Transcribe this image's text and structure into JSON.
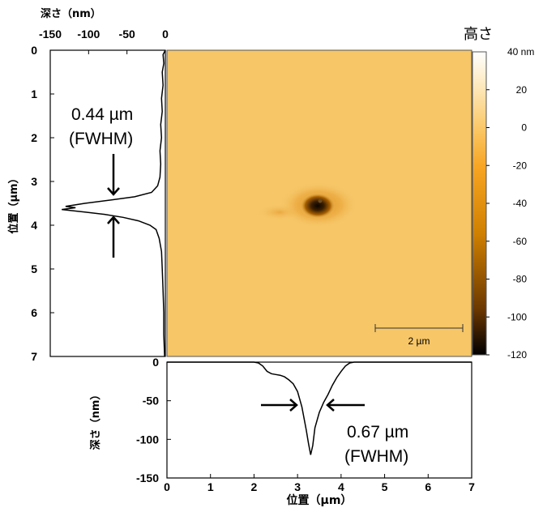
{
  "chart_data": [
    {
      "type": "heatmap",
      "title": "",
      "colorbar": {
        "title": "高さ",
        "range": [
          -120,
          40
        ],
        "unit_label": "40 nm",
        "ticks": [
          "20",
          "0",
          "-20",
          "-40",
          "-60",
          "-80",
          "-100",
          "-120"
        ],
        "colors": [
          "#000000",
          "#6b3800",
          "#d08000",
          "#f7a522",
          "#fbc868",
          "#fde7b8",
          "#ffffff"
        ]
      },
      "image": {
        "background_color": "#f6c667",
        "x_range_um": [
          0,
          7
        ],
        "y_range_um": [
          0,
          7
        ],
        "feature": {
          "kind": "depression",
          "center_x_um": 3.6,
          "center_y_um": 3.65,
          "min_height_nm": -120
        }
      },
      "scale_bar": {
        "label": "2 µm",
        "length_um": 2
      }
    },
    {
      "type": "line",
      "orientation": "vertical",
      "xlabel": "深さ（nm）",
      "ylabel": "位置（µm）",
      "xlim": [
        -150,
        0
      ],
      "ylim": [
        0,
        7
      ],
      "xticks": [
        "-150",
        "-100",
        "-50",
        "0"
      ],
      "yticks": [
        "0",
        "1",
        "2",
        "3",
        "4",
        "5",
        "6",
        "7"
      ],
      "series": [
        {
          "points": [
            [
              0,
              0
            ],
            [
              -3,
              0.1
            ],
            [
              -2,
              0.3
            ],
            [
              -4,
              0.5
            ],
            [
              -3,
              0.8
            ],
            [
              -5,
              1.1
            ],
            [
              -4,
              1.4
            ],
            [
              -6,
              1.7
            ],
            [
              -5,
              2.0
            ],
            [
              -7,
              2.3
            ],
            [
              -6,
              2.6
            ],
            [
              -7,
              2.9
            ],
            [
              -10,
              3.1
            ],
            [
              -18,
              3.25
            ],
            [
              -40,
              3.35
            ],
            [
              -70,
              3.42
            ],
            [
              -105,
              3.5
            ],
            [
              -130,
              3.57
            ],
            [
              -117,
              3.6
            ],
            [
              -135,
              3.64
            ],
            [
              -105,
              3.7
            ],
            [
              -80,
              3.75
            ],
            [
              -55,
              3.82
            ],
            [
              -35,
              3.9
            ],
            [
              -20,
              4.0
            ],
            [
              -12,
              4.1
            ],
            [
              -8,
              4.3
            ],
            [
              -5,
              4.6
            ],
            [
              -4,
              5.0
            ],
            [
              -3,
              5.5
            ],
            [
              -2,
              6.0
            ],
            [
              -2,
              6.5
            ],
            [
              -1,
              7.0
            ]
          ]
        }
      ],
      "annotation": {
        "label_value": "0.44 µm",
        "label_note": "(FWHM)"
      }
    },
    {
      "type": "line",
      "xlabel": "位置（µm）",
      "ylabel": "深さ（nm）",
      "xlim": [
        0,
        7
      ],
      "ylim": [
        -150,
        0
      ],
      "xticks": [
        "0",
        "1",
        "2",
        "3",
        "4",
        "5",
        "6",
        "7"
      ],
      "yticks": [
        "0",
        "-50",
        "-100",
        "-150"
      ],
      "series": [
        {
          "points": [
            [
              0,
              0
            ],
            [
              2.0,
              0
            ],
            [
              2.1,
              -1
            ],
            [
              2.2,
              -5
            ],
            [
              2.3,
              -12
            ],
            [
              2.4,
              -15
            ],
            [
              2.5,
              -16
            ],
            [
              2.6,
              -17
            ],
            [
              2.7,
              -19
            ],
            [
              2.8,
              -23
            ],
            [
              2.9,
              -28
            ],
            [
              3.0,
              -38
            ],
            [
              3.1,
              -58
            ],
            [
              3.2,
              -88
            ],
            [
              3.25,
              -105
            ],
            [
              3.3,
              -120
            ],
            [
              3.35,
              -108
            ],
            [
              3.4,
              -85
            ],
            [
              3.5,
              -65
            ],
            [
              3.6,
              -52
            ],
            [
              3.7,
              -42
            ],
            [
              3.8,
              -30
            ],
            [
              3.9,
              -20
            ],
            [
              4.0,
              -12
            ],
            [
              4.1,
              -5
            ],
            [
              4.2,
              -1
            ],
            [
              4.3,
              0
            ],
            [
              7.0,
              0
            ]
          ]
        }
      ],
      "annotation": {
        "label_value": "0.67 µm",
        "label_note": "(FWHM)"
      }
    }
  ]
}
